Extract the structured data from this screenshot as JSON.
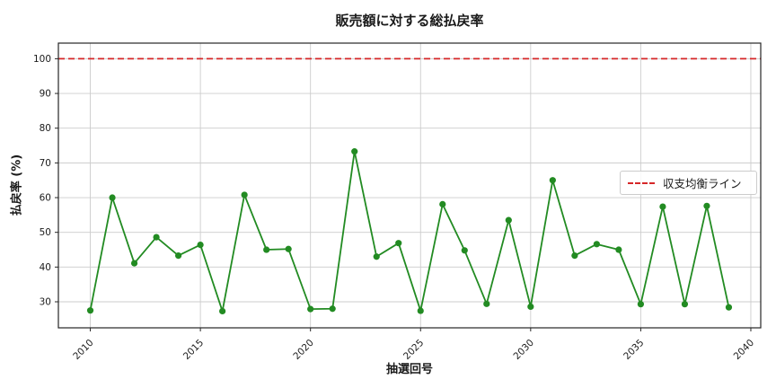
{
  "chart_data": {
    "type": "line",
    "title": "販売額に対する総払戻率",
    "xlabel": "抽選回号",
    "ylabel": "払戻率 (%)",
    "x": [
      2010,
      2011,
      2012,
      2013,
      2014,
      2015,
      2016,
      2017,
      2018,
      2019,
      2020,
      2021,
      2022,
      2023,
      2024,
      2025,
      2026,
      2027,
      2028,
      2029,
      2030,
      2031,
      2032,
      2033,
      2034,
      2035,
      2036,
      2037,
      2038,
      2039
    ],
    "series": [
      {
        "name": "総払戻率",
        "color": "#228B22",
        "marker": "circle",
        "values": [
          27.5,
          60.0,
          41.1,
          48.6,
          43.3,
          46.4,
          27.3,
          60.8,
          45.0,
          45.2,
          27.9,
          28.0,
          73.3,
          43.0,
          46.9,
          27.4,
          58.1,
          44.8,
          29.4,
          53.5,
          28.6,
          65.0,
          43.3,
          46.6,
          45.0,
          29.3,
          57.4,
          29.3,
          57.6,
          28.4
        ]
      }
    ],
    "reference_line": {
      "label": "収支均衡ライン",
      "value": 100,
      "color": "#d62728",
      "style": "dashed"
    },
    "xticks": [
      2010,
      2015,
      2020,
      2025,
      2030,
      2035,
      2040
    ],
    "yticks": [
      30,
      40,
      50,
      60,
      70,
      80,
      90,
      100
    ],
    "xlim": [
      2008.55,
      2040.45
    ],
    "ylim": [
      22.5,
      104.5
    ],
    "grid": true,
    "grid_color": "#cccccc",
    "axis_color": "#262626",
    "background": "#ffffff",
    "legend_position": "center-right"
  }
}
